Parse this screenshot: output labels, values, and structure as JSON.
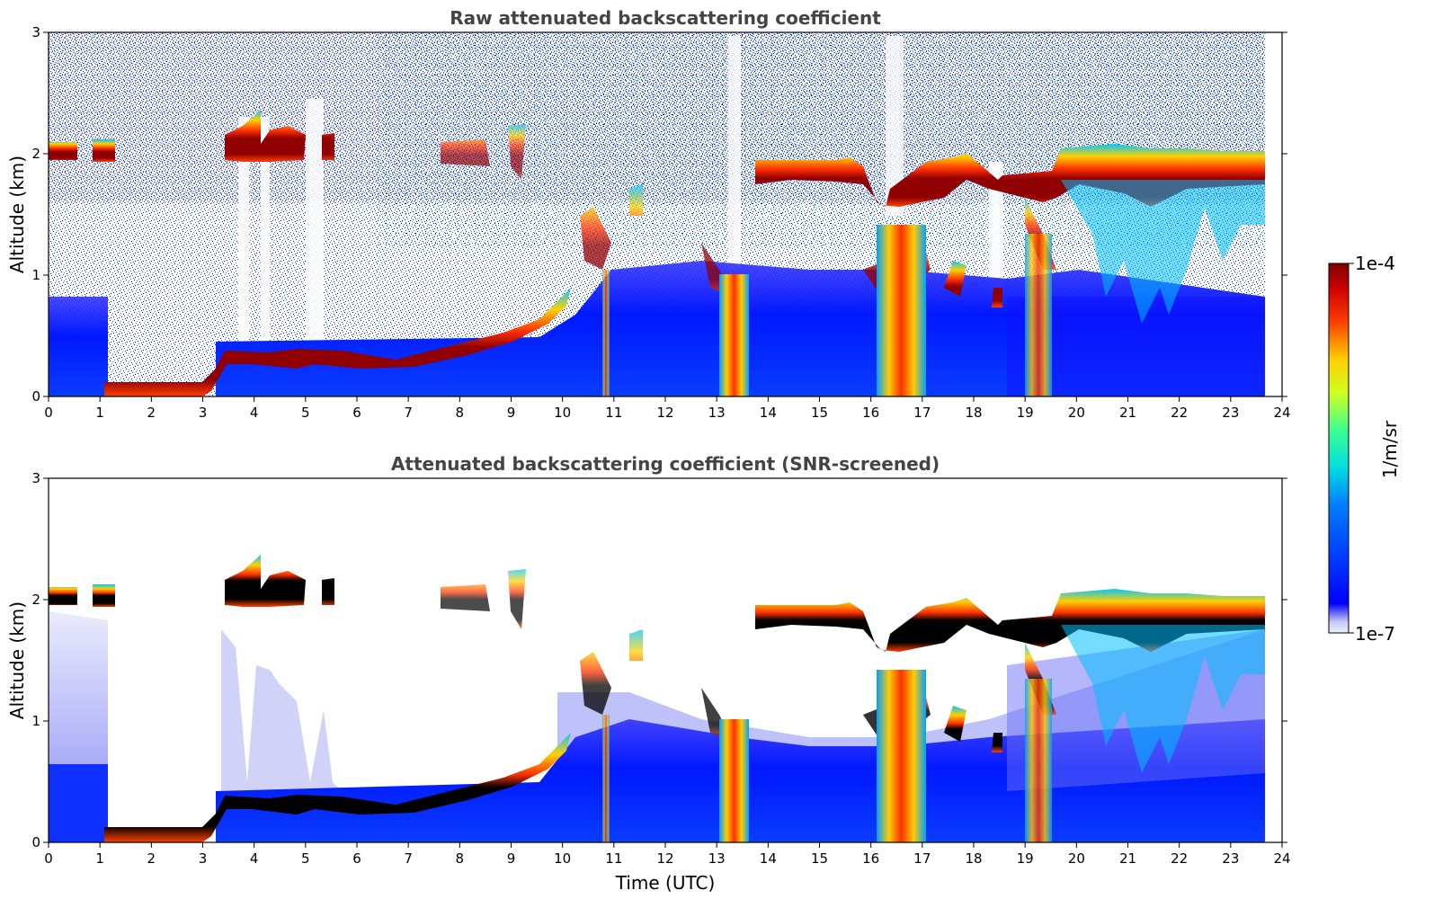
{
  "chart_data": [
    {
      "type": "heatmap",
      "title": "Raw attenuated backscattering coefficient",
      "xlabel": "",
      "ylabel": "Altitude (km)",
      "xlim": [
        0,
        24
      ],
      "ylim": [
        0,
        3
      ],
      "xticks": [
        "0",
        "1",
        "2",
        "3",
        "4",
        "5",
        "6",
        "7",
        "8",
        "9",
        "10",
        "11",
        "12",
        "13",
        "14",
        "15",
        "16",
        "17",
        "18",
        "19",
        "20",
        "21",
        "22",
        "23",
        "24"
      ],
      "yticks": [
        "0",
        "1",
        "2",
        "3"
      ],
      "data_end_hour": 23.65,
      "grid": false,
      "colorbar": {
        "label": "1/m/sr",
        "min_label": "1e-7",
        "max_label": "1e-4",
        "scale": "log",
        "colormap": "jet"
      },
      "features": {
        "cloud_layers": [
          {
            "name": "upper layer early",
            "x": [
              0,
              1.35
            ],
            "base_km": 1.95,
            "top_km": 2.12
          },
          {
            "name": "upper patches",
            "x": [
              3.4,
              5.5
            ],
            "base_km": 1.95,
            "top_km": 2.35
          },
          {
            "name": "upper layer late",
            "x": [
              13.9,
              23.65
            ],
            "base_km": 1.6,
            "top_km": 2.05
          }
        ],
        "boundary_layer_top_km": [
          {
            "x": 1.1,
            "y": 0.1
          },
          {
            "x": 3.0,
            "y": 0.12
          },
          {
            "x": 3.5,
            "y": 0.35
          },
          {
            "x": 6.0,
            "y": 0.3
          },
          {
            "x": 8.0,
            "y": 0.42
          },
          {
            "x": 9.0,
            "y": 0.5
          },
          {
            "x": 10.0,
            "y": 0.8
          }
        ],
        "precipitation_shafts_x": [
          10.85,
          13.35,
          16.4,
          19.2
        ]
      }
    },
    {
      "type": "heatmap",
      "title": "Attenuated backscattering coefficient (SNR-screened)",
      "xlabel": "Time (UTC)",
      "ylabel": "Altitude (km)",
      "xlim": [
        0,
        24
      ],
      "ylim": [
        0,
        3
      ],
      "xticks": [
        "0",
        "1",
        "2",
        "3",
        "4",
        "5",
        "6",
        "7",
        "8",
        "9",
        "10",
        "11",
        "12",
        "13",
        "14",
        "15",
        "16",
        "17",
        "18",
        "19",
        "20",
        "21",
        "22",
        "23",
        "24"
      ],
      "yticks": [
        "0",
        "1",
        "2",
        "3"
      ],
      "data_end_hour": 23.65,
      "grid": false,
      "colorbar": {
        "label": "1/m/sr",
        "min_label": "1e-7",
        "max_label": "1e-4",
        "scale": "log",
        "colormap": "jet"
      }
    }
  ]
}
